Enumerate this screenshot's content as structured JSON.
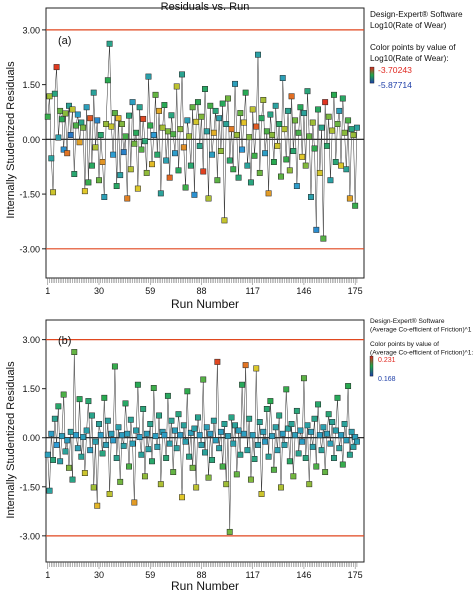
{
  "chart_data": [
    {
      "type": "scatter",
      "panel_label": "(a)",
      "title": "Residuals vs. Run",
      "xlabel": "Run Number",
      "ylabel": "Internally Studentized Residuals",
      "xlim": [
        0,
        180
      ],
      "ylim": [
        -3.8,
        3.6
      ],
      "x_ticks": [
        1,
        30,
        59,
        88,
        117,
        146,
        175
      ],
      "y_ticks": [
        3.0,
        1.5,
        0.0,
        -1.5,
        -3.0
      ],
      "y_tick_labels": [
        "3.00",
        "1.50",
        "0.00",
        "-1.50",
        "-3.00"
      ],
      "limit_lines": [
        3.0,
        -3.0
      ],
      "legend": {
        "software": "Design-Expert® Software",
        "response": "Log10(Rate of Wear)",
        "color_caption_1": "Color points by value of",
        "color_caption_2": "Log10(Rate of Wear):",
        "max_value": "-3.70243",
        "min_value": "-5.87714",
        "max_color": "#e0271f",
        "min_color": "#1f3fa8"
      },
      "series": [
        {
          "values": [
            0.62,
            1.18,
            -0.52,
            -1.45,
            1.25,
            1.98,
            0.05,
            0.78,
            0.55,
            -0.28,
            0.71,
            -0.38,
            0.92,
            0.12,
            0.82,
            -0.95,
            0.38,
            0.68,
            -0.08,
            0.46,
            0.32,
            -1.42,
            0.88,
            -1.18,
            0.58,
            -0.72,
            1.28,
            -0.22,
            0.52,
            -1.12,
            0.12,
            -0.62,
            -1.58,
            0.42,
            1.62,
            2.62,
            0.35,
            -0.42,
            0.72,
            -1.28,
            0.58,
            -0.98,
            0.42,
            -0.35,
            0.08,
            -1.62,
            0.65,
            -0.82,
            1.02,
            -0.12,
            0.18,
            -1.35,
            0.88,
            -0.28,
            0.56,
            -0.05,
            -0.92,
            1.72,
            0.38,
            -0.68,
            0.12,
            1.22,
            -0.42,
            0.78,
            -1.48,
            0.32,
            0.94,
            -0.58,
            0.22,
            -1.05,
            0.66,
            0.14,
            -0.38,
            1.45,
            -0.85,
            0.28,
            1.78,
            -0.22,
            -1.32,
            0.52,
            0.08,
            -0.72,
            0.88,
            -1.52,
            0.48,
            1.02,
            -0.18,
            0.62,
            -0.88,
            1.38,
            0.22,
            -1.62,
            0.92,
            -0.42,
            0.18,
            0.78,
            -1.12,
            0.58,
            -0.32,
            0.98,
            -2.22,
            0.42,
            1.12,
            -0.58,
            0.28,
            -0.82,
            1.52,
            0.12,
            -1.05,
            0.72,
            -0.28,
            0.46,
            1.28,
            -0.72,
            0.06,
            -1.18,
            0.82,
            -0.45,
            0.35,
            2.32,
            -0.92,
            0.58,
            1.08,
            -0.38,
            0.22,
            -1.48,
            0.68,
            0.12,
            -0.62,
            0.92,
            -0.18,
            0.42,
            -1.02,
            1.68,
            0.28,
            -0.55,
            0.78,
            -0.85,
            1.18,
            -0.32,
            0.52,
            -1.28,
            0.18,
            0.88,
            -0.48,
            0.72,
            -0.72,
            1.32,
            0.08,
            -1.58,
            0.46,
            -0.25,
            -2.48,
            0.82,
            -0.92,
            0.32,
            -2.72,
            1.02,
            -0.18,
            0.62,
            -1.12,
            0.24,
            1.22,
            -0.62,
            0.42,
            0.78,
            -0.72,
            1.12,
            0.18,
            -0.82,
            0.52,
            -1.62,
            0.28,
            0.12,
            -1.82,
            0.32
          ],
          "color_values": [
            0.52,
            0.66,
            0.35,
            0.72,
            0.41,
            0.97,
            0.33,
            0.58,
            0.49,
            0.22,
            0.63,
            0.88,
            0.37,
            0.15,
            0.7,
            0.44,
            0.55,
            0.28,
            0.81,
            0.4,
            0.61,
            0.75,
            0.3,
            0.52,
            0.93,
            0.47,
            0.36,
            0.68,
            0.2,
            0.59,
            0.44,
            0.83,
            0.31,
            0.65,
            0.5,
            0.39,
            0.71,
            0.26,
            0.57,
            0.46,
            0.78,
            0.34,
            0.62,
            0.18,
            0.54,
            0.86,
            0.42,
            0.69,
            0.29,
            0.6,
            0.48,
            0.74,
            0.38,
            0.56,
            0.95,
            0.43,
            0.64,
            0.33,
            0.51,
            0.77,
            0.25,
            0.58,
            0.45,
            0.8,
            0.36,
            0.67,
            0.49,
            0.32,
            0.61,
            0.9,
            0.41,
            0.55,
            0.27,
            0.7,
            0.47,
            0.63,
            0.38,
            0.84,
            0.53,
            0.31,
            0.66,
            0.44,
            0.58,
            0.22,
            0.73,
            0.5,
            0.39,
            0.62,
            0.96,
            0.46,
            0.35,
            0.68,
            0.54,
            0.29,
            0.79,
            0.42,
            0.57,
            0.33,
            0.64,
            0.48,
            0.71,
            0.37,
            0.6,
            0.45,
            0.87,
            0.52,
            0.3,
            0.65,
            0.43,
            0.58,
            0.24,
            0.76,
            0.49,
            0.36,
            0.62,
            0.41,
            0.7,
            0.53,
            0.92,
            0.34,
            0.59,
            0.47,
            0.67,
            0.28,
            0.55,
            0.82,
            0.4,
            0.63,
            0.5,
            0.35,
            0.72,
            0.45,
            0.57,
            0.31,
            0.69,
            0.52,
            0.38,
            0.64,
            0.89,
            0.44,
            0.6,
            0.27,
            0.54,
            0.48,
            0.75,
            0.36,
            0.62,
            0.42,
            0.58,
            0.33,
            0.66,
            0.51,
            0.21,
            0.47,
            0.73,
            0.39,
            0.56,
            0.98,
            0.45,
            0.61,
            0.34,
            0.68,
            0.5,
            0.43,
            0.59,
            0.3,
            0.74,
            0.46,
            0.63,
            0.37,
            0.55,
            0.81,
            0.41,
            0.65,
            0.52,
            0.35,
            0.62
          ]
        }
      ]
    },
    {
      "type": "scatter",
      "panel_label": "(b)",
      "xlabel": "Run Number",
      "ylabel": "Internally Studentized Residuals",
      "xlim": [
        0,
        180
      ],
      "ylim": [
        -3.8,
        3.6
      ],
      "x_ticks": [
        1,
        30,
        59,
        88,
        117,
        146,
        175
      ],
      "y_ticks": [
        3.0,
        1.5,
        0.0,
        -1.5,
        -3.0
      ],
      "y_tick_labels": [
        "3.00",
        "1.50",
        "0.00",
        "-1.50",
        "-3.00"
      ],
      "limit_lines": [
        3.0,
        -3.0
      ],
      "legend": {
        "software": "Design-Expert® Software",
        "response": "(Average Co-efficient of Friction)^1",
        "color_caption_1": "Color points by value of",
        "color_caption_2": "(Average Co-efficient of Friction)^1:",
        "max_value": "0.231",
        "min_value": "0.168",
        "max_color": "#e0271f",
        "min_color": "#1f3fa8"
      },
      "series": [
        {
          "values": [
            -0.52,
            -1.62,
            0.12,
            -0.68,
            0.58,
            -0.22,
            0.96,
            -0.72,
            0.05,
            1.32,
            -0.42,
            -0.08,
            -0.92,
            0.18,
            -1.28,
            2.62,
            0.08,
            -0.32,
            1.18,
            -0.58,
            0.02,
            -1.08,
            0.22,
            1.12,
            -0.38,
            0.68,
            -1.52,
            -0.12,
            -2.08,
            0.42,
            0.08,
            -0.48,
            1.22,
            -0.22,
            0.52,
            -1.72,
            0.12,
            -0.08,
            2.18,
            -0.62,
            0.32,
            -1.35,
            0.08,
            -0.25,
            1.05,
            0.12,
            -0.88,
            0.55,
            -0.18,
            -1.98,
            0.22,
            1.62,
            0.02,
            -0.52,
            0.88,
            -1.18,
            0.12,
            -0.35,
            0.42,
            -0.72,
            1.52,
            0.05,
            -0.28,
            0.68,
            -1.42,
            0.18,
            0.08,
            -0.62,
            1.28,
            -0.18,
            0.52,
            -1.05,
            0.22,
            -0.32,
            0.72,
            0.08,
            -1.82,
            0.38,
            -0.12,
            1.42,
            -0.58,
            0.15,
            -0.92,
            0.28,
            -1.52,
            0.62,
            0.08,
            -0.22,
            1.78,
            -0.45,
            0.32,
            -1.22,
            0.12,
            -0.68,
            0.52,
            -0.08,
            2.32,
            -0.32,
            0.18,
            -0.88,
            0.42,
            -1.42,
            0.05,
            -2.88,
            0.62,
            -0.18,
            0.38,
            -1.12,
            0.22,
            -0.52,
            1.62,
            0.12,
            2.22,
            -0.38,
            0.58,
            -1.28,
            0.08,
            -0.65,
            2.12,
            -0.22,
            0.48,
            -1.72,
            0.18,
            -0.12,
            0.88,
            -0.58,
            1.12,
            0.05,
            -0.98,
            0.32,
            -0.38,
            0.68,
            -1.52,
            0.12,
            -0.22,
            1.48,
            0.28,
            -0.72,
            0.42,
            -1.18,
            0.08,
            0.82,
            -0.48,
            0.22,
            -0.12,
            1.82,
            -0.62,
            0.38,
            -1.42,
            0.18,
            -0.28,
            0.58,
            -0.88,
            1.02,
            0.08,
            -0.38,
            0.32,
            -1.05,
            0.12,
            0.72,
            -0.18,
            0.48,
            -0.62,
            0.22,
            1.22,
            -0.32,
            0.08,
            -0.82,
            0.42,
            -0.08,
            1.58,
            -0.52,
            0.18,
            -0.28,
            0.02,
            -0.12
          ],
          "color_values": [
            0.3,
            0.35,
            0.28,
            0.42,
            0.38,
            0.25,
            0.45,
            0.33,
            0.3,
            0.55,
            0.36,
            0.29,
            0.62,
            0.34,
            0.4,
            0.58,
            0.27,
            0.31,
            0.48,
            0.37,
            0.3,
            0.72,
            0.33,
            0.44,
            0.29,
            0.39,
            0.66,
            0.32,
            0.78,
            0.36,
            0.28,
            0.41,
            0.5,
            0.31,
            0.35,
            0.7,
            0.3,
            0.27,
            0.52,
            0.38,
            0.33,
            0.6,
            0.29,
            0.34,
            0.46,
            0.3,
            0.55,
            0.37,
            0.31,
            0.82,
            0.33,
            0.49,
            0.28,
            0.36,
            0.42,
            0.64,
            0.3,
            0.34,
            0.38,
            0.45,
            0.53,
            0.29,
            0.32,
            0.4,
            0.68,
            0.31,
            0.28,
            0.43,
            0.47,
            0.33,
            0.37,
            0.58,
            0.3,
            0.35,
            0.41,
            0.28,
            0.75,
            0.36,
            0.32,
            0.51,
            0.39,
            0.3,
            0.6,
            0.34,
            0.7,
            0.38,
            0.29,
            0.33,
            0.56,
            0.36,
            0.31,
            0.62,
            0.28,
            0.42,
            0.35,
            0.3,
            0.95,
            0.34,
            0.29,
            0.54,
            0.37,
            0.66,
            0.31,
            0.6,
            0.4,
            0.33,
            0.36,
            0.58,
            0.3,
            0.38,
            0.48,
            0.29,
            0.88,
            0.35,
            0.39,
            0.62,
            0.3,
            0.41,
            0.74,
            0.33,
            0.37,
            0.72,
            0.31,
            0.28,
            0.44,
            0.36,
            0.5,
            0.3,
            0.56,
            0.34,
            0.32,
            0.4,
            0.68,
            0.29,
            0.33,
            0.52,
            0.35,
            0.46,
            0.37,
            0.6,
            0.3,
            0.42,
            0.38,
            0.31,
            0.28,
            0.57,
            0.41,
            0.34,
            0.64,
            0.3,
            0.33,
            0.39,
            0.55,
            0.45,
            0.29,
            0.36,
            0.32,
            0.58,
            0.3,
            0.43,
            0.31,
            0.37,
            0.4,
            0.33,
            0.48,
            0.35,
            0.29,
            0.52,
            0.36,
            0.3,
            0.5,
            0.38,
            0.32,
            0.34,
            0.3,
            0.31
          ]
        }
      ]
    }
  ]
}
